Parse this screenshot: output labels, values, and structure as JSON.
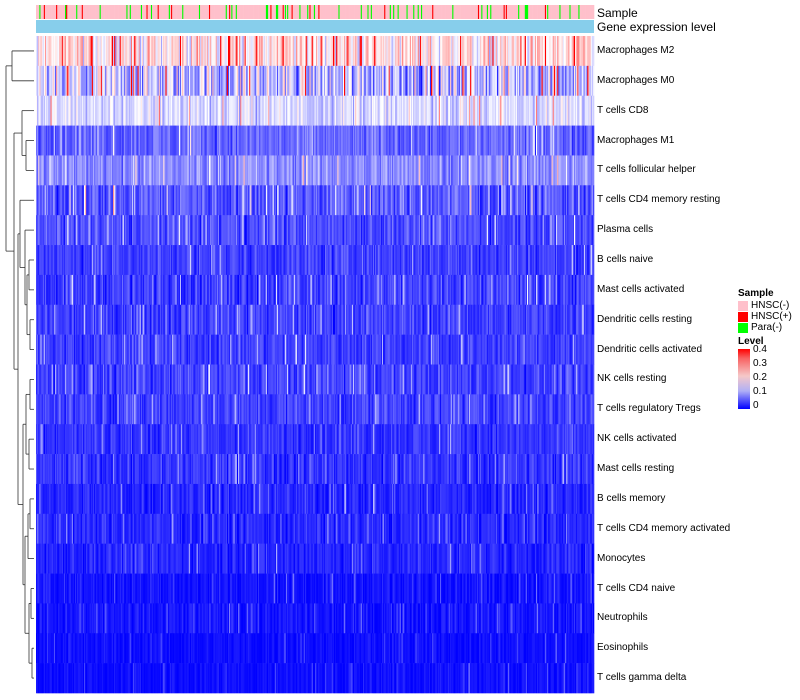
{
  "chart_data": {
    "type": "heatmap",
    "title": "",
    "annotation_tracks": [
      {
        "name": "Sample",
        "colors": {
          "HNSC(-)": "#ffc0cb",
          "HNSC(+)": "#ff0000",
          "Para(-)": "#00ff00"
        }
      },
      {
        "name": "Gene expression level",
        "colors": {
          "level": "#87ceeb"
        }
      }
    ],
    "rows": [
      {
        "label": "Macrophages M2",
        "mean": 0.22,
        "spread": 0.12
      },
      {
        "label": "Macrophages M0",
        "mean": 0.15,
        "spread": 0.17
      },
      {
        "label": "T cells CD8",
        "mean": 0.17,
        "spread": 0.08
      },
      {
        "label": "Macrophages M1",
        "mean": 0.08,
        "spread": 0.07
      },
      {
        "label": "T cells follicular helper",
        "mean": 0.11,
        "spread": 0.08
      },
      {
        "label": "T cells CD4 memory resting",
        "mean": 0.07,
        "spread": 0.09
      },
      {
        "label": "Plasma cells",
        "mean": 0.06,
        "spread": 0.07
      },
      {
        "label": "B cells naive",
        "mean": 0.05,
        "spread": 0.06
      },
      {
        "label": "Mast cells activated",
        "mean": 0.05,
        "spread": 0.07
      },
      {
        "label": "Dendritic cells resting",
        "mean": 0.05,
        "spread": 0.06
      },
      {
        "label": "Dendritic cells activated",
        "mean": 0.05,
        "spread": 0.06
      },
      {
        "label": "NK cells resting",
        "mean": 0.05,
        "spread": 0.06
      },
      {
        "label": "T cells regulatory  Tregs",
        "mean": 0.05,
        "spread": 0.06
      },
      {
        "label": "NK cells activated",
        "mean": 0.04,
        "spread": 0.05
      },
      {
        "label": "Mast cells resting",
        "mean": 0.04,
        "spread": 0.06
      },
      {
        "label": "B cells memory",
        "mean": 0.03,
        "spread": 0.05
      },
      {
        "label": "T cells CD4 memory activated",
        "mean": 0.03,
        "spread": 0.05
      },
      {
        "label": "Monocytes",
        "mean": 0.03,
        "spread": 0.05
      },
      {
        "label": "T cells CD4 naive",
        "mean": 0.015,
        "spread": 0.04
      },
      {
        "label": "Neutrophils",
        "mean": 0.015,
        "spread": 0.04
      },
      {
        "label": "Eosinophils",
        "mean": 0.01,
        "spread": 0.03
      },
      {
        "label": "T cells gamma delta",
        "mean": 0.01,
        "spread": 0.03
      }
    ],
    "n_columns": 500,
    "color_scale": {
      "min": 0,
      "max": 0.4,
      "low": "#0000ff",
      "mid": "#ffffff",
      "high": "#ff0000"
    },
    "legend": {
      "sample_title": "Sample",
      "sample_items": [
        {
          "label": "HNSC(-)",
          "color": "#ffc0cb"
        },
        {
          "label": "HNSC(+)",
          "color": "#ff0000"
        },
        {
          "label": "Para(-)",
          "color": "#00ff00"
        }
      ],
      "level_title": "Level",
      "level_ticks": [
        "0.4",
        "0.3",
        "0.2",
        "0.1",
        "0"
      ],
      "placement": "right"
    }
  }
}
